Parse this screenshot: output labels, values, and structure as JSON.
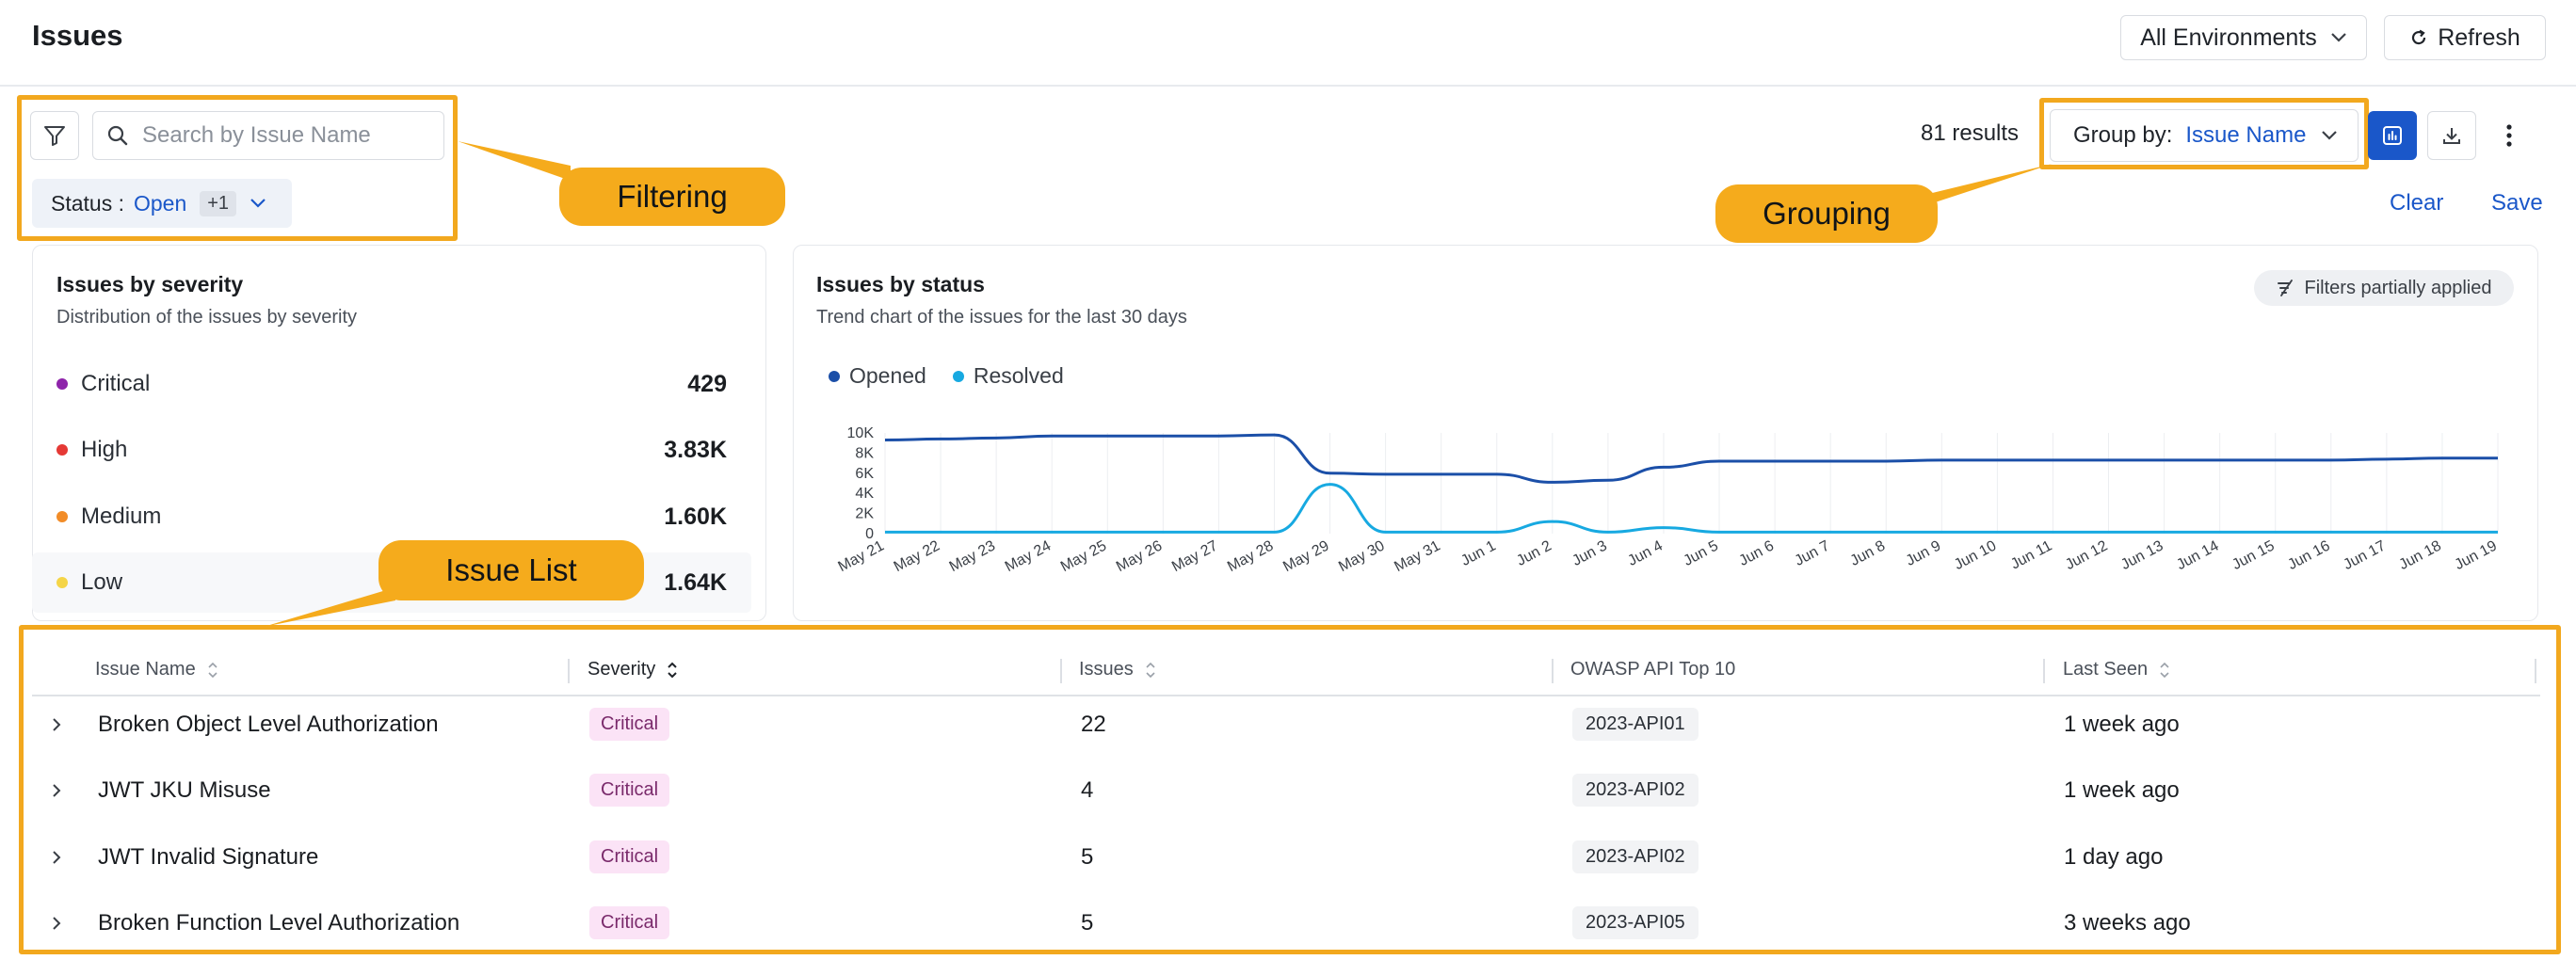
{
  "header": {
    "title": "Issues",
    "environment_label": "All Environments",
    "refresh_label": "Refresh"
  },
  "filters": {
    "search_placeholder": "Search by Issue Name",
    "search_value": "",
    "status_label": "Status :",
    "status_value": "Open",
    "status_extra": "+1"
  },
  "toolbar": {
    "results_text": "81 results",
    "group_by_label": "Group by:",
    "group_by_value": "Issue Name",
    "clear_label": "Clear",
    "save_label": "Save"
  },
  "callouts": {
    "filtering": "Filtering",
    "grouping": "Grouping",
    "issue_list": "Issue List"
  },
  "severity_card": {
    "title": "Issues by severity",
    "subtitle": "Distribution of the issues by severity",
    "items": [
      {
        "label": "Critical",
        "value": "429",
        "color": "#8e24aa"
      },
      {
        "label": "High",
        "value": "3.83K",
        "color": "#e53935"
      },
      {
        "label": "Medium",
        "value": "1.60K",
        "color": "#f28c28"
      },
      {
        "label": "Low",
        "value": "1.64K",
        "color": "#f5d547"
      }
    ]
  },
  "status_card": {
    "title": "Issues by status",
    "subtitle": "Trend chart of the issues for the last 30 days",
    "filters_badge": "Filters partially applied"
  },
  "chart_data": {
    "type": "line",
    "title": "Issues by status",
    "x": [
      "May 21",
      "May 22",
      "May 23",
      "May 24",
      "May 25",
      "May 26",
      "May 27",
      "May 28",
      "May 29",
      "May 30",
      "May 31",
      "Jun 1",
      "Jun 2",
      "Jun 3",
      "Jun 4",
      "Jun 5",
      "Jun 6",
      "Jun 7",
      "Jun 8",
      "Jun 9",
      "Jun 10",
      "Jun 11",
      "Jun 12",
      "Jun 13",
      "Jun 14",
      "Jun 15",
      "Jun 16",
      "Jun 17",
      "Jun 18",
      "Jun 19"
    ],
    "y_ticks": [
      "0",
      "2K",
      "4K",
      "6K",
      "8K",
      "10K"
    ],
    "ylim": [
      0,
      10000
    ],
    "series": [
      {
        "name": "Opened",
        "color": "#1b4fa8",
        "values": [
          9300,
          9400,
          9500,
          9700,
          9700,
          9700,
          9700,
          9800,
          6000,
          5900,
          5900,
          5900,
          5100,
          5300,
          6600,
          7200,
          7200,
          7200,
          7200,
          7300,
          7300,
          7300,
          7300,
          7300,
          7300,
          7300,
          7300,
          7400,
          7500,
          7500
        ]
      },
      {
        "name": "Resolved",
        "color": "#17a9e1",
        "values": [
          150,
          150,
          150,
          150,
          150,
          150,
          150,
          150,
          4900,
          150,
          150,
          150,
          1200,
          150,
          600,
          150,
          150,
          150,
          150,
          150,
          150,
          150,
          150,
          150,
          150,
          150,
          150,
          150,
          150,
          150
        ]
      }
    ],
    "grid": true,
    "legend_position": "top-left"
  },
  "table": {
    "columns": [
      "Issue Name",
      "Severity",
      "Issues",
      "OWASP API Top 10",
      "Last Seen"
    ],
    "rows": [
      {
        "name": "Broken Object Level Authorization",
        "severity": "Critical",
        "issues": "22",
        "owasp": "2023-API01",
        "last_seen": "1 week ago"
      },
      {
        "name": "JWT JKU Misuse",
        "severity": "Critical",
        "issues": "4",
        "owasp": "2023-API02",
        "last_seen": "1 week ago"
      },
      {
        "name": "JWT Invalid Signature",
        "severity": "Critical",
        "issues": "5",
        "owasp": "2023-API02",
        "last_seen": "1 day ago"
      },
      {
        "name": "Broken Function Level Authorization",
        "severity": "Critical",
        "issues": "5",
        "owasp": "2023-API05",
        "last_seen": "3 weeks ago"
      }
    ]
  },
  "icons": {
    "filter": "filter-icon",
    "search": "search-icon",
    "chart": "bar-chart-icon",
    "download": "download-icon",
    "more": "more-vertical-icon",
    "refresh": "refresh-icon"
  }
}
